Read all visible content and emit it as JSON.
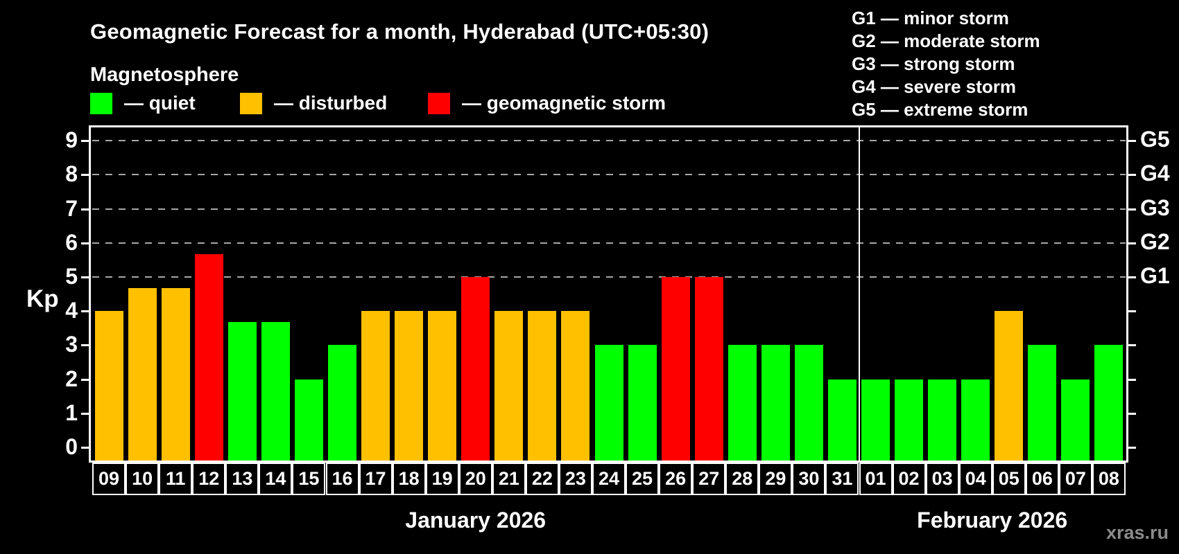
{
  "title": "Geomagnetic Forecast for a month, Hyderabad (UTC+05:30)",
  "subtitle": "Magnetosphere",
  "legend": [
    {
      "name": "quiet",
      "label": "— quiet",
      "color": "#00ff00"
    },
    {
      "name": "disturbed",
      "label": "— disturbed",
      "color": "#ffc000"
    },
    {
      "name": "storm",
      "label": "— geomagnetic storm",
      "color": "#ff0000"
    }
  ],
  "g_legend": [
    "G1 — minor storm",
    "G2 — moderate storm",
    "G3 — strong storm",
    "G4 — severe storm",
    "G5 — extreme storm"
  ],
  "y_axis": {
    "label": "Kp",
    "ticks": [
      0,
      1,
      2,
      3,
      4,
      5,
      6,
      7,
      8,
      9
    ]
  },
  "right_axis": {
    "labels": [
      {
        "text": "G1",
        "kp": 5
      },
      {
        "text": "G2",
        "kp": 6
      },
      {
        "text": "G3",
        "kp": 7
      },
      {
        "text": "G4",
        "kp": 8
      },
      {
        "text": "G5",
        "kp": 9
      }
    ]
  },
  "months": [
    {
      "label": "January 2026",
      "start_index": 0,
      "count": 23
    },
    {
      "label": "February 2026",
      "start_index": 23,
      "count": 8
    }
  ],
  "watermark": "xras.ru",
  "chart_data": {
    "type": "bar",
    "title": "Geomagnetic Forecast for a month, Hyderabad (UTC+05:30)",
    "xlabel": "",
    "ylabel": "Kp",
    "ylim": [
      0,
      9.4
    ],
    "grid": "dashed horizontal at Kp 5-9 (G1-G5)",
    "gridlines_at": [
      5,
      6,
      7,
      8,
      9
    ],
    "categories": [
      "09",
      "10",
      "11",
      "12",
      "13",
      "14",
      "15",
      "16",
      "17",
      "18",
      "19",
      "20",
      "21",
      "22",
      "23",
      "24",
      "25",
      "26",
      "27",
      "28",
      "29",
      "30",
      "31",
      "01",
      "02",
      "03",
      "04",
      "05",
      "06",
      "07",
      "08"
    ],
    "values": [
      4,
      4.67,
      4.67,
      5.67,
      3.67,
      3.67,
      2,
      3,
      4,
      4,
      4,
      5,
      4,
      4,
      4,
      3,
      3,
      5,
      5,
      3,
      3,
      3,
      2,
      2,
      2,
      2,
      2,
      4,
      3,
      2,
      3
    ],
    "statuses": [
      "disturbed",
      "disturbed",
      "disturbed",
      "storm",
      "quiet",
      "quiet",
      "quiet",
      "quiet",
      "disturbed",
      "disturbed",
      "disturbed",
      "storm",
      "disturbed",
      "disturbed",
      "disturbed",
      "quiet",
      "quiet",
      "storm",
      "storm",
      "quiet",
      "quiet",
      "quiet",
      "quiet",
      "quiet",
      "quiet",
      "quiet",
      "quiet",
      "disturbed",
      "quiet",
      "quiet",
      "quiet"
    ],
    "status_colors": {
      "quiet": "#00ff00",
      "disturbed": "#ffc000",
      "storm": "#ff0000"
    },
    "g_levels": [
      {
        "label": "G1",
        "kp": 5
      },
      {
        "label": "G2",
        "kp": 6
      },
      {
        "label": "G3",
        "kp": 7
      },
      {
        "label": "G4",
        "kp": 8
      },
      {
        "label": "G5",
        "kp": 9
      }
    ]
  }
}
